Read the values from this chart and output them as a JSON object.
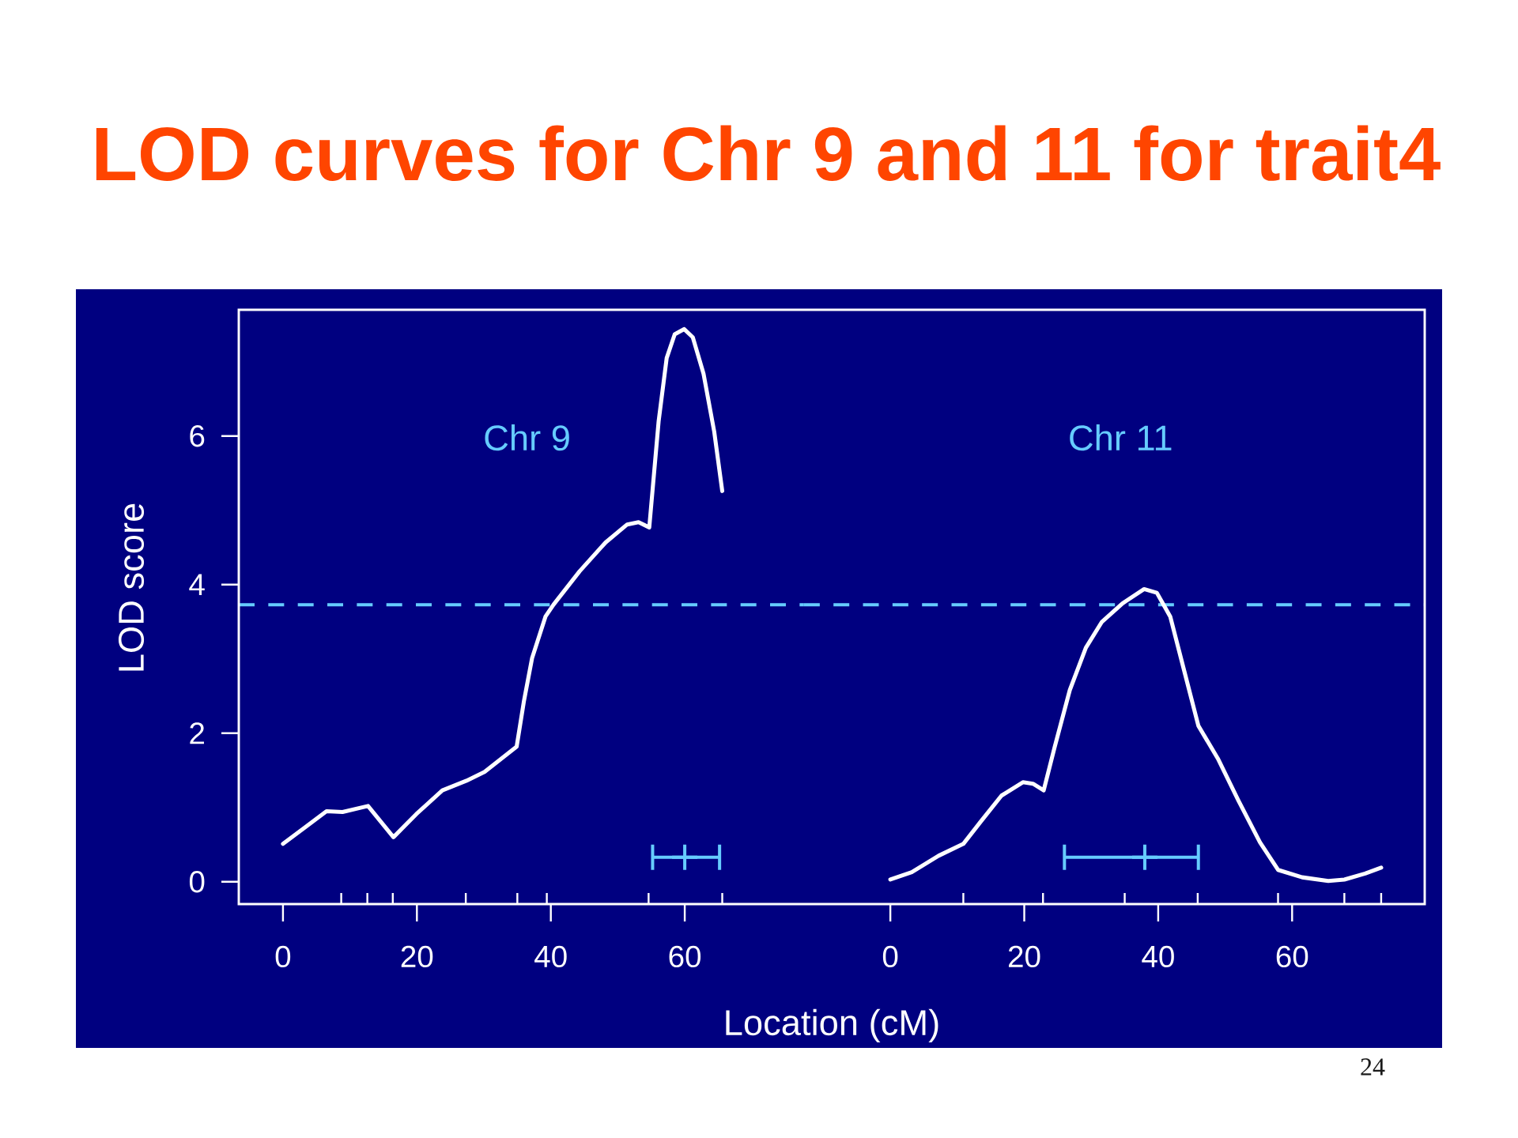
{
  "chart_data": [
    {
      "type": "line",
      "title": "LOD curves for Chr 9 and 11 for trait4",
      "xlabel": "Location (cM)",
      "ylabel": "LOD score",
      "annotations": [
        "Chr 9"
      ],
      "xlim": [
        -6.6,
        77.8
      ],
      "ylim": [
        -0.3,
        7.7
      ],
      "xticks": [
        0,
        20,
        40,
        60,
        {
          "value": 8.7,
          "label": null
        },
        {
          "value": 12.6,
          "label": null
        },
        {
          "value": 16.4,
          "label": null
        },
        {
          "value": 27.3,
          "label": null
        },
        {
          "value": 35.0,
          "label": null
        },
        {
          "value": 39.4,
          "label": null
        },
        {
          "value": 54.6,
          "label": null
        },
        {
          "value": 65.6,
          "label": null
        }
      ],
      "yticks": [
        0,
        2,
        4,
        6
      ],
      "ref_lines": [
        {
          "axis": "y",
          "value": 3.73,
          "color": "#66ccff",
          "line_style": "dashed"
        }
      ],
      "series": [
        {
          "color": "#ffffff",
          "x": [
            0,
            3.4,
            6.5,
            8.9,
            12.7,
            16.5,
            19.9,
            23.8,
            27.4,
            30.1,
            34.9,
            36.0,
            37.2,
            39.2,
            40.4,
            44.3,
            48.2,
            51.4,
            53.1,
            54.7,
            56.1,
            57.3,
            58.5,
            59.9,
            61.2,
            62.8,
            64.4,
            65.6
          ],
          "values": [
            0.51,
            0.74,
            0.95,
            0.94,
            1.02,
            0.6,
            0.91,
            1.23,
            1.36,
            1.48,
            1.82,
            2.44,
            3.01,
            3.57,
            3.73,
            4.18,
            4.57,
            4.81,
            4.84,
            4.77,
            6.2,
            7.05,
            7.37,
            7.44,
            7.33,
            6.84,
            6.06,
            5.26
          ]
        },
        {
          "type": "scatter",
          "color": "#66ccff",
          "marker": "cross",
          "x": [
            60.0
          ],
          "values": [
            0.33
          ],
          "xerrors": [
            [
              55.2,
              65.2
            ]
          ]
        }
      ]
    },
    {
      "type": "line",
      "annotations": [
        "Chr 11",
        "24"
      ],
      "xlim": [
        -12.9,
        79.8
      ],
      "ylim": [
        -0.3,
        7.7
      ],
      "tick_labels": "x",
      "xticks": [
        0,
        20,
        40,
        60,
        {
          "value": 10.9,
          "label": null
        },
        {
          "value": 22.8,
          "label": null
        },
        {
          "value": 35.0,
          "label": null
        },
        {
          "value": 45.9,
          "label": null
        },
        {
          "value": 57.9,
          "label": null
        },
        {
          "value": 67.8,
          "label": null
        },
        {
          "value": 73.3,
          "label": null
        }
      ],
      "ref_lines": [
        {
          "axis": "y",
          "value": 3.73,
          "color": "#66ccff",
          "line_style": "dashed"
        }
      ],
      "series": [
        {
          "color": "#ffffff",
          "x": [
            0,
            3.2,
            7.2,
            10.9,
            13.5,
            16.6,
            19.8,
            21.3,
            22.9,
            24.5,
            26.8,
            29.2,
            31.6,
            34.7,
            37.9,
            39.8,
            41.8,
            43.8,
            46.0,
            48.9,
            52.0,
            55.2,
            57.9,
            61.5,
            65.4,
            67.8,
            70.9,
            73.3
          ],
          "values": [
            0.03,
            0.13,
            0.35,
            0.51,
            0.81,
            1.16,
            1.34,
            1.32,
            1.23,
            1.8,
            2.58,
            3.15,
            3.5,
            3.75,
            3.94,
            3.89,
            3.57,
            2.87,
            2.1,
            1.66,
            1.09,
            0.53,
            0.16,
            0.06,
            0.01,
            0.03,
            0.11,
            0.19
          ]
        },
        {
          "type": "scatter",
          "color": "#66ccff",
          "marker": "cross",
          "x": [
            38.0
          ],
          "values": [
            0.33
          ],
          "xerrors": [
            [
              26.0,
              46.0
            ]
          ]
        }
      ]
    }
  ]
}
